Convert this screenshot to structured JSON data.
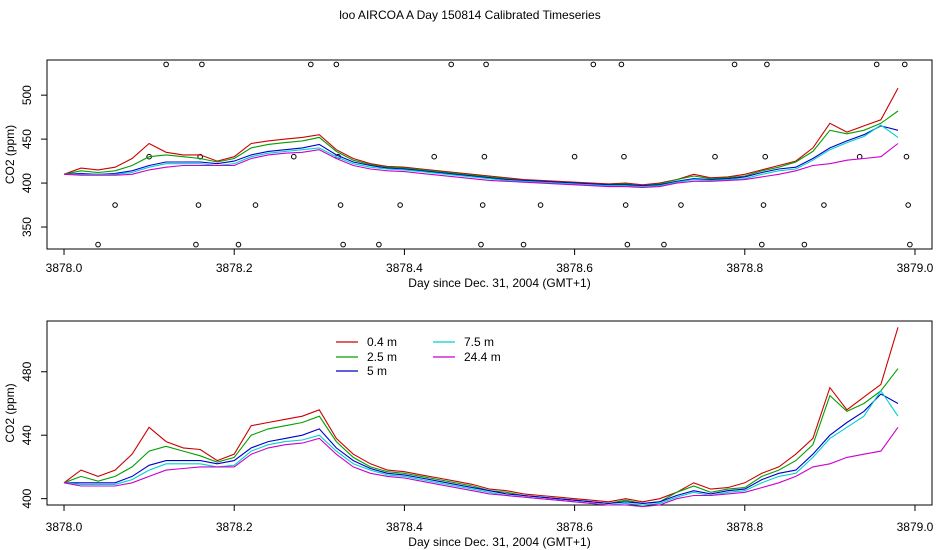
{
  "title": "loo AIRCOA A  Day 150814  Calibrated Timeseries",
  "colors": {
    "0.4 m": "#cc0000",
    "2.5 m": "#00a000",
    "5 m": "#0000cc",
    "7.5 m": "#00d0d0",
    "24.4 m": "#cc00cc"
  },
  "chart_data": [
    {
      "type": "line",
      "title": "",
      "xlabel": "Day since Dec. 31, 2004 (GMT+1)",
      "ylabel": "CO2 (ppm)",
      "xlim": [
        3877.98,
        3879.02
      ],
      "ylim": [
        325,
        540
      ],
      "xticks": [
        "3878.0",
        "3878.2",
        "3878.4",
        "3878.6",
        "3878.8",
        "3879.0"
      ],
      "yticks": [
        "350",
        "400",
        "450",
        "500"
      ],
      "grid": false,
      "legend": "none",
      "marker_points": [
        {
          "x": 3878.04,
          "y": 330
        },
        {
          "x": 3878.06,
          "y": 375
        },
        {
          "x": 3878.1,
          "y": 430
        },
        {
          "x": 3878.12,
          "y": 535
        },
        {
          "x": 3878.155,
          "y": 330
        },
        {
          "x": 3878.158,
          "y": 375
        },
        {
          "x": 3878.16,
          "y": 430
        },
        {
          "x": 3878.162,
          "y": 535
        },
        {
          "x": 3878.205,
          "y": 330
        },
        {
          "x": 3878.225,
          "y": 375
        },
        {
          "x": 3878.27,
          "y": 430
        },
        {
          "x": 3878.29,
          "y": 535
        },
        {
          "x": 3878.32,
          "y": 535
        },
        {
          "x": 3878.322,
          "y": 430
        },
        {
          "x": 3878.325,
          "y": 375
        },
        {
          "x": 3878.328,
          "y": 330
        },
        {
          "x": 3878.37,
          "y": 330
        },
        {
          "x": 3878.395,
          "y": 375
        },
        {
          "x": 3878.435,
          "y": 430
        },
        {
          "x": 3878.455,
          "y": 535
        },
        {
          "x": 3878.49,
          "y": 330
        },
        {
          "x": 3878.492,
          "y": 375
        },
        {
          "x": 3878.494,
          "y": 430
        },
        {
          "x": 3878.496,
          "y": 535
        },
        {
          "x": 3878.54,
          "y": 330
        },
        {
          "x": 3878.56,
          "y": 375
        },
        {
          "x": 3878.6,
          "y": 430
        },
        {
          "x": 3878.622,
          "y": 535
        },
        {
          "x": 3878.655,
          "y": 535
        },
        {
          "x": 3878.658,
          "y": 430
        },
        {
          "x": 3878.66,
          "y": 375
        },
        {
          "x": 3878.662,
          "y": 330
        },
        {
          "x": 3878.705,
          "y": 330
        },
        {
          "x": 3878.725,
          "y": 375
        },
        {
          "x": 3878.765,
          "y": 430
        },
        {
          "x": 3878.788,
          "y": 535
        },
        {
          "x": 3878.82,
          "y": 330
        },
        {
          "x": 3878.822,
          "y": 375
        },
        {
          "x": 3878.824,
          "y": 430
        },
        {
          "x": 3878.826,
          "y": 535
        },
        {
          "x": 3878.87,
          "y": 330
        },
        {
          "x": 3878.893,
          "y": 375
        },
        {
          "x": 3878.935,
          "y": 430
        },
        {
          "x": 3878.955,
          "y": 535
        },
        {
          "x": 3878.988,
          "y": 535
        },
        {
          "x": 3878.99,
          "y": 430
        },
        {
          "x": 3878.992,
          "y": 375
        },
        {
          "x": 3878.994,
          "y": 330
        }
      ],
      "x": [
        3878.0,
        3878.02,
        3878.04,
        3878.06,
        3878.08,
        3878.1,
        3878.12,
        3878.14,
        3878.16,
        3878.18,
        3878.2,
        3878.22,
        3878.24,
        3878.26,
        3878.28,
        3878.3,
        3878.32,
        3878.34,
        3878.36,
        3878.38,
        3878.4,
        3878.42,
        3878.44,
        3878.46,
        3878.48,
        3878.5,
        3878.52,
        3878.54,
        3878.56,
        3878.58,
        3878.6,
        3878.62,
        3878.64,
        3878.66,
        3878.68,
        3878.7,
        3878.72,
        3878.74,
        3878.76,
        3878.78,
        3878.8,
        3878.82,
        3878.84,
        3878.86,
        3878.88,
        3878.9,
        3878.92,
        3878.94,
        3878.96,
        3878.98
      ],
      "series": [
        {
          "name": "0.4 m",
          "values": [
            410,
            417,
            415,
            418,
            428,
            445,
            435,
            432,
            432,
            425,
            430,
            445,
            448,
            450,
            452,
            455,
            438,
            428,
            422,
            419,
            418,
            416,
            414,
            412,
            410,
            408,
            406,
            404,
            403,
            402,
            401,
            400,
            399,
            400,
            398,
            400,
            404,
            410,
            406,
            407,
            410,
            415,
            420,
            425,
            440,
            468,
            458,
            465,
            472,
            508
          ]
        },
        {
          "name": "2.5 m",
          "values": [
            410,
            414,
            412,
            414,
            420,
            430,
            432,
            430,
            428,
            424,
            428,
            440,
            444,
            446,
            448,
            452,
            436,
            426,
            421,
            418,
            417,
            415,
            413,
            411,
            409,
            407,
            405,
            403,
            402,
            401,
            400,
            399,
            398,
            399,
            397,
            399,
            404,
            408,
            405,
            406,
            408,
            414,
            418,
            424,
            436,
            460,
            456,
            460,
            468,
            482
          ]
        },
        {
          "name": "5 m",
          "values": [
            410,
            411,
            410,
            411,
            414,
            420,
            424,
            424,
            424,
            422,
            425,
            432,
            436,
            438,
            440,
            444,
            432,
            424,
            420,
            417,
            416,
            414,
            412,
            410,
            408,
            406,
            404,
            403,
            402,
            401,
            400,
            399,
            398,
            398,
            397,
            398,
            402,
            405,
            404,
            405,
            407,
            412,
            416,
            418,
            428,
            440,
            448,
            455,
            465,
            460
          ]
        },
        {
          "name": "7.5 m",
          "values": [
            410,
            410,
            410,
            410,
            412,
            418,
            422,
            422,
            422,
            420,
            422,
            430,
            434,
            436,
            438,
            440,
            430,
            422,
            418,
            416,
            415,
            413,
            411,
            409,
            407,
            405,
            403,
            402,
            401,
            400,
            399,
            398,
            397,
            397,
            396,
            397,
            401,
            404,
            403,
            404,
            405,
            410,
            414,
            416,
            426,
            438,
            446,
            453,
            466,
            452
          ]
        },
        {
          "name": "24.4 m",
          "values": [
            410,
            409,
            409,
            409,
            410,
            415,
            418,
            420,
            420,
            420,
            420,
            428,
            432,
            434,
            435,
            438,
            428,
            420,
            416,
            414,
            413,
            411,
            409,
            407,
            405,
            403,
            402,
            401,
            400,
            399,
            398,
            397,
            396,
            396,
            395,
            396,
            400,
            402,
            402,
            403,
            404,
            407,
            410,
            414,
            420,
            422,
            426,
            428,
            430,
            445
          ]
        }
      ]
    },
    {
      "type": "line",
      "title": "",
      "xlabel": "Day since Dec. 31, 2004 (GMT+1)",
      "ylabel": "CO2 (ppm)",
      "xlim": [
        3877.98,
        3879.02
      ],
      "ylim": [
        396,
        512
      ],
      "xticks": [
        "3878.0",
        "3878.2",
        "3878.4",
        "3878.6",
        "3878.8",
        "3879.0"
      ],
      "yticks": [
        "400",
        "440",
        "480"
      ],
      "grid": false,
      "legend": "top-left",
      "legend_entries": [
        "0.4 m",
        "2.5 m",
        "5 m",
        "7.5 m",
        "24.4 m"
      ],
      "x": [
        3878.0,
        3878.02,
        3878.04,
        3878.06,
        3878.08,
        3878.1,
        3878.12,
        3878.14,
        3878.16,
        3878.18,
        3878.2,
        3878.22,
        3878.24,
        3878.26,
        3878.28,
        3878.3,
        3878.32,
        3878.34,
        3878.36,
        3878.38,
        3878.4,
        3878.42,
        3878.44,
        3878.46,
        3878.48,
        3878.5,
        3878.52,
        3878.54,
        3878.56,
        3878.58,
        3878.6,
        3878.62,
        3878.64,
        3878.66,
        3878.68,
        3878.7,
        3878.72,
        3878.74,
        3878.76,
        3878.78,
        3878.8,
        3878.82,
        3878.84,
        3878.86,
        3878.88,
        3878.9,
        3878.92,
        3878.94,
        3878.96,
        3878.98
      ],
      "series": [
        {
          "name": "0.4 m",
          "values": [
            410,
            418,
            414,
            418,
            428,
            445,
            436,
            432,
            431,
            424,
            428,
            446,
            448,
            450,
            452,
            456,
            438,
            428,
            422,
            418,
            417,
            415,
            413,
            411,
            409,
            406,
            405,
            403,
            402,
            401,
            400,
            399,
            398,
            400,
            398,
            400,
            404,
            410,
            406,
            407,
            410,
            416,
            420,
            428,
            438,
            470,
            456,
            464,
            472,
            508
          ]
        },
        {
          "name": "2.5 m",
          "values": [
            410,
            414,
            411,
            414,
            420,
            430,
            433,
            430,
            427,
            423,
            426,
            440,
            444,
            446,
            448,
            452,
            436,
            426,
            420,
            417,
            416,
            414,
            412,
            410,
            408,
            405,
            404,
            402,
            401,
            400,
            399,
            398,
            397,
            399,
            397,
            398,
            404,
            408,
            404,
            406,
            407,
            414,
            418,
            424,
            434,
            465,
            455,
            460,
            468,
            482
          ]
        },
        {
          "name": "5 m",
          "values": [
            410,
            410,
            410,
            410,
            414,
            421,
            424,
            424,
            424,
            422,
            424,
            432,
            436,
            438,
            440,
            444,
            432,
            424,
            419,
            416,
            415,
            413,
            411,
            409,
            407,
            405,
            403,
            402,
            401,
            400,
            399,
            398,
            397,
            398,
            397,
            398,
            402,
            405,
            403,
            405,
            406,
            412,
            416,
            418,
            428,
            440,
            448,
            455,
            466,
            460
          ]
        },
        {
          "name": "7.5 m",
          "values": [
            410,
            409,
            409,
            409,
            412,
            418,
            422,
            422,
            422,
            420,
            421,
            430,
            434,
            436,
            437,
            440,
            430,
            422,
            418,
            415,
            414,
            412,
            410,
            408,
            406,
            404,
            402,
            401,
            400,
            399,
            398,
            397,
            396,
            397,
            396,
            397,
            401,
            404,
            402,
            404,
            405,
            410,
            414,
            416,
            426,
            438,
            445,
            452,
            468,
            452
          ]
        },
        {
          "name": "24.4 m",
          "values": [
            410,
            408,
            408,
            408,
            410,
            414,
            418,
            419,
            420,
            420,
            420,
            428,
            432,
            434,
            435,
            438,
            428,
            420,
            416,
            414,
            413,
            411,
            409,
            407,
            405,
            403,
            402,
            401,
            400,
            399,
            398,
            397,
            396,
            396,
            395,
            396,
            400,
            402,
            402,
            403,
            404,
            407,
            410,
            414,
            420,
            422,
            426,
            428,
            430,
            445
          ]
        }
      ]
    }
  ]
}
